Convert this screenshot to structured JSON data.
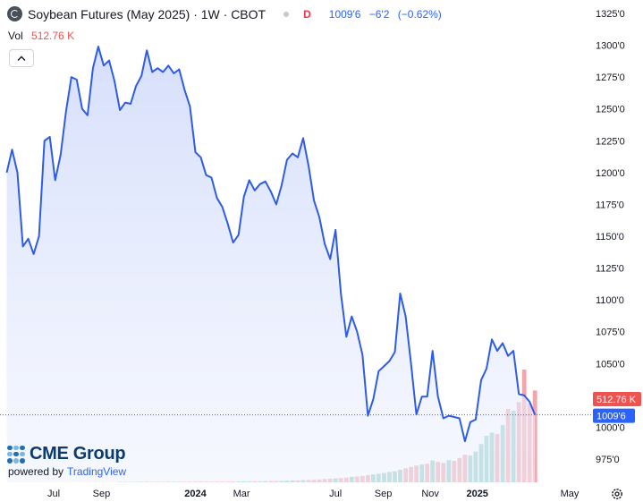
{
  "header": {
    "title": "Soybean Futures (May 2025) · 1W · CBOT",
    "market_status": "D",
    "last_price": "1009'6",
    "change": "−6'2",
    "change_pct": "(−0.62%)"
  },
  "volume_label": {
    "label": "Vol",
    "value": "512.76 K"
  },
  "branding": {
    "logo": "CME Group",
    "powered_by": "powered by",
    "provider": "TradingView"
  },
  "icons": {
    "collapse": "chevron-up-icon",
    "settings": "gear-icon",
    "cme": "cme-group-logo"
  },
  "colors": {
    "line": "#2f5ce6",
    "area_top": "#d4ddfb",
    "vol_up": "#8fcfc6",
    "vol_down": "#f2a5ab",
    "last_price": "#2962ff",
    "last_volume": "#ef5350"
  },
  "chart_data": {
    "type": "area",
    "y_unit": "cents per bushel (eighths notation)",
    "ylim": [
      950,
      1330
    ],
    "y_ticks": [
      "975'0",
      "1000'0",
      "1025'0",
      "1050'0",
      "1075'0",
      "1100'0",
      "1125'0",
      "1150'0",
      "1175'0",
      "1200'0",
      "1225'0",
      "1250'0",
      "1275'0",
      "1300'0",
      "1325'0"
    ],
    "y_tick_values": [
      975,
      1000,
      1025,
      1050,
      1075,
      1100,
      1125,
      1150,
      1175,
      1200,
      1225,
      1250,
      1275,
      1300,
      1325
    ],
    "x_ticks": [
      "Jul",
      "Sep",
      "2024",
      "Mar",
      "Jul",
      "Sep",
      "Nov",
      "2025",
      "May"
    ],
    "x_tick_dates": [
      "2023-07-01",
      "2023-09-01",
      "2024-01-01",
      "2024-03-01",
      "2024-07-01",
      "2024-09-01",
      "2024-11-01",
      "2025-01-01",
      "2025-05-01"
    ],
    "x_range": [
      "2023-05-01",
      "2025-06-15"
    ],
    "price_series": [
      {
        "date": "2023-05-01",
        "value": 1200
      },
      {
        "date": "2023-05-08",
        "value": 1218
      },
      {
        "date": "2023-05-15",
        "value": 1200
      },
      {
        "date": "2023-05-22",
        "value": 1142
      },
      {
        "date": "2023-05-29",
        "value": 1148
      },
      {
        "date": "2023-06-05",
        "value": 1136
      },
      {
        "date": "2023-06-12",
        "value": 1150
      },
      {
        "date": "2023-06-19",
        "value": 1225
      },
      {
        "date": "2023-06-26",
        "value": 1228
      },
      {
        "date": "2023-07-03",
        "value": 1194
      },
      {
        "date": "2023-07-10",
        "value": 1214
      },
      {
        "date": "2023-07-17",
        "value": 1248
      },
      {
        "date": "2023-07-24",
        "value": 1275
      },
      {
        "date": "2023-07-31",
        "value": 1273
      },
      {
        "date": "2023-08-07",
        "value": 1250
      },
      {
        "date": "2023-08-14",
        "value": 1245
      },
      {
        "date": "2023-08-21",
        "value": 1282
      },
      {
        "date": "2023-08-28",
        "value": 1299
      },
      {
        "date": "2023-09-04",
        "value": 1284
      },
      {
        "date": "2023-09-11",
        "value": 1288
      },
      {
        "date": "2023-09-18",
        "value": 1272
      },
      {
        "date": "2023-09-25",
        "value": 1249
      },
      {
        "date": "2023-10-02",
        "value": 1255
      },
      {
        "date": "2023-10-09",
        "value": 1254
      },
      {
        "date": "2023-10-16",
        "value": 1268
      },
      {
        "date": "2023-10-23",
        "value": 1276
      },
      {
        "date": "2023-10-30",
        "value": 1296
      },
      {
        "date": "2023-11-06",
        "value": 1279
      },
      {
        "date": "2023-11-13",
        "value": 1282
      },
      {
        "date": "2023-11-20",
        "value": 1279
      },
      {
        "date": "2023-11-27",
        "value": 1284
      },
      {
        "date": "2023-12-04",
        "value": 1278
      },
      {
        "date": "2023-12-11",
        "value": 1281
      },
      {
        "date": "2023-12-18",
        "value": 1265
      },
      {
        "date": "2023-12-25",
        "value": 1252
      },
      {
        "date": "2024-01-01",
        "value": 1216
      },
      {
        "date": "2024-01-08",
        "value": 1212
      },
      {
        "date": "2024-01-15",
        "value": 1198
      },
      {
        "date": "2024-01-22",
        "value": 1196
      },
      {
        "date": "2024-01-29",
        "value": 1180
      },
      {
        "date": "2024-02-05",
        "value": 1173
      },
      {
        "date": "2024-02-12",
        "value": 1160
      },
      {
        "date": "2024-02-19",
        "value": 1145
      },
      {
        "date": "2024-02-26",
        "value": 1151
      },
      {
        "date": "2024-03-04",
        "value": 1181
      },
      {
        "date": "2024-03-11",
        "value": 1194
      },
      {
        "date": "2024-03-18",
        "value": 1186
      },
      {
        "date": "2024-03-25",
        "value": 1191
      },
      {
        "date": "2024-04-01",
        "value": 1193
      },
      {
        "date": "2024-04-08",
        "value": 1185
      },
      {
        "date": "2024-04-15",
        "value": 1175
      },
      {
        "date": "2024-04-22",
        "value": 1190
      },
      {
        "date": "2024-04-29",
        "value": 1210
      },
      {
        "date": "2024-05-06",
        "value": 1215
      },
      {
        "date": "2024-05-13",
        "value": 1212
      },
      {
        "date": "2024-05-20",
        "value": 1227
      },
      {
        "date": "2024-05-27",
        "value": 1205
      },
      {
        "date": "2024-06-03",
        "value": 1178
      },
      {
        "date": "2024-06-10",
        "value": 1165
      },
      {
        "date": "2024-06-17",
        "value": 1144
      },
      {
        "date": "2024-06-24",
        "value": 1132
      },
      {
        "date": "2024-07-01",
        "value": 1155
      },
      {
        "date": "2024-07-08",
        "value": 1105
      },
      {
        "date": "2024-07-15",
        "value": 1071
      },
      {
        "date": "2024-07-22",
        "value": 1087
      },
      {
        "date": "2024-07-29",
        "value": 1075
      },
      {
        "date": "2024-08-05",
        "value": 1057
      },
      {
        "date": "2024-08-12",
        "value": 1009
      },
      {
        "date": "2024-08-19",
        "value": 1022
      },
      {
        "date": "2024-08-26",
        "value": 1044
      },
      {
        "date": "2024-09-02",
        "value": 1048
      },
      {
        "date": "2024-09-09",
        "value": 1052
      },
      {
        "date": "2024-09-16",
        "value": 1059
      },
      {
        "date": "2024-09-23",
        "value": 1105
      },
      {
        "date": "2024-09-30",
        "value": 1087
      },
      {
        "date": "2024-10-07",
        "value": 1050
      },
      {
        "date": "2024-10-14",
        "value": 1010
      },
      {
        "date": "2024-10-21",
        "value": 1024
      },
      {
        "date": "2024-10-28",
        "value": 1024
      },
      {
        "date": "2024-11-04",
        "value": 1060
      },
      {
        "date": "2024-11-11",
        "value": 1024
      },
      {
        "date": "2024-11-18",
        "value": 1007
      },
      {
        "date": "2024-11-25",
        "value": 1009
      },
      {
        "date": "2024-12-02",
        "value": 1008
      },
      {
        "date": "2024-12-09",
        "value": 1007
      },
      {
        "date": "2024-12-16",
        "value": 989
      },
      {
        "date": "2024-12-23",
        "value": 1004
      },
      {
        "date": "2024-12-30",
        "value": 1006
      },
      {
        "date": "2025-01-06",
        "value": 1037
      },
      {
        "date": "2025-01-13",
        "value": 1046
      },
      {
        "date": "2025-01-20",
        "value": 1069
      },
      {
        "date": "2025-01-27",
        "value": 1060
      },
      {
        "date": "2025-02-03",
        "value": 1066
      },
      {
        "date": "2025-02-10",
        "value": 1056
      },
      {
        "date": "2025-02-17",
        "value": 1060
      },
      {
        "date": "2025-02-24",
        "value": 1026
      },
      {
        "date": "2025-03-03",
        "value": 1025
      },
      {
        "date": "2025-03-10",
        "value": 1020
      },
      {
        "date": "2025-03-17",
        "value": 1009.75
      }
    ],
    "volume_series": [
      {
        "date": "2023-09-25",
        "value": 2,
        "dir": "up"
      },
      {
        "date": "2023-10-02",
        "value": 2,
        "dir": "down"
      },
      {
        "date": "2023-10-09",
        "value": 2,
        "dir": "up"
      },
      {
        "date": "2023-10-16",
        "value": 2,
        "dir": "up"
      },
      {
        "date": "2023-10-23",
        "value": 3,
        "dir": "up"
      },
      {
        "date": "2023-10-30",
        "value": 3,
        "dir": "down"
      },
      {
        "date": "2023-11-06",
        "value": 2,
        "dir": "up"
      },
      {
        "date": "2023-11-13",
        "value": 3,
        "dir": "down"
      },
      {
        "date": "2023-11-20",
        "value": 2,
        "dir": "up"
      },
      {
        "date": "2023-11-27",
        "value": 3,
        "dir": "down"
      },
      {
        "date": "2023-12-04",
        "value": 3,
        "dir": "up"
      },
      {
        "date": "2023-12-11",
        "value": 3,
        "dir": "down"
      },
      {
        "date": "2023-12-18",
        "value": 3,
        "dir": "down"
      },
      {
        "date": "2023-12-25",
        "value": 3,
        "dir": "down"
      },
      {
        "date": "2024-01-01",
        "value": 4,
        "dir": "down"
      },
      {
        "date": "2024-01-08",
        "value": 4,
        "dir": "down"
      },
      {
        "date": "2024-01-15",
        "value": 4,
        "dir": "down"
      },
      {
        "date": "2024-01-22",
        "value": 3,
        "dir": "down"
      },
      {
        "date": "2024-01-29",
        "value": 4,
        "dir": "down"
      },
      {
        "date": "2024-02-05",
        "value": 4,
        "dir": "down"
      },
      {
        "date": "2024-02-12",
        "value": 4,
        "dir": "down"
      },
      {
        "date": "2024-02-19",
        "value": 5,
        "dir": "down"
      },
      {
        "date": "2024-02-26",
        "value": 5,
        "dir": "up"
      },
      {
        "date": "2024-03-04",
        "value": 6,
        "dir": "up"
      },
      {
        "date": "2024-03-11",
        "value": 6,
        "dir": "up"
      },
      {
        "date": "2024-03-18",
        "value": 6,
        "dir": "down"
      },
      {
        "date": "2024-03-25",
        "value": 6,
        "dir": "up"
      },
      {
        "date": "2024-04-01",
        "value": 7,
        "dir": "up"
      },
      {
        "date": "2024-04-08",
        "value": 7,
        "dir": "down"
      },
      {
        "date": "2024-04-15",
        "value": 8,
        "dir": "down"
      },
      {
        "date": "2024-04-22",
        "value": 8,
        "dir": "up"
      },
      {
        "date": "2024-04-29",
        "value": 9,
        "dir": "up"
      },
      {
        "date": "2024-05-06",
        "value": 10,
        "dir": "up"
      },
      {
        "date": "2024-05-13",
        "value": 10,
        "dir": "down"
      },
      {
        "date": "2024-05-20",
        "value": 12,
        "dir": "up"
      },
      {
        "date": "2024-05-27",
        "value": 13,
        "dir": "down"
      },
      {
        "date": "2024-06-03",
        "value": 14,
        "dir": "down"
      },
      {
        "date": "2024-06-10",
        "value": 16,
        "dir": "down"
      },
      {
        "date": "2024-06-17",
        "value": 18,
        "dir": "down"
      },
      {
        "date": "2024-06-24",
        "value": 20,
        "dir": "down"
      },
      {
        "date": "2024-07-01",
        "value": 22,
        "dir": "up"
      },
      {
        "date": "2024-07-08",
        "value": 24,
        "dir": "down"
      },
      {
        "date": "2024-07-15",
        "value": 26,
        "dir": "down"
      },
      {
        "date": "2024-07-22",
        "value": 30,
        "dir": "up"
      },
      {
        "date": "2024-07-29",
        "value": 32,
        "dir": "down"
      },
      {
        "date": "2024-08-05",
        "value": 36,
        "dir": "down"
      },
      {
        "date": "2024-08-12",
        "value": 40,
        "dir": "down"
      },
      {
        "date": "2024-08-19",
        "value": 44,
        "dir": "up"
      },
      {
        "date": "2024-08-26",
        "value": 48,
        "dir": "up"
      },
      {
        "date": "2024-09-02",
        "value": 52,
        "dir": "up"
      },
      {
        "date": "2024-09-09",
        "value": 58,
        "dir": "up"
      },
      {
        "date": "2024-09-16",
        "value": 62,
        "dir": "up"
      },
      {
        "date": "2024-09-23",
        "value": 70,
        "dir": "up"
      },
      {
        "date": "2024-09-30",
        "value": 78,
        "dir": "down"
      },
      {
        "date": "2024-10-07",
        "value": 86,
        "dir": "down"
      },
      {
        "date": "2024-10-14",
        "value": 94,
        "dir": "down"
      },
      {
        "date": "2024-10-21",
        "value": 100,
        "dir": "up"
      },
      {
        "date": "2024-10-28",
        "value": 104,
        "dir": "down"
      },
      {
        "date": "2024-11-04",
        "value": 122,
        "dir": "up"
      },
      {
        "date": "2024-11-11",
        "value": 114,
        "dir": "down"
      },
      {
        "date": "2024-11-18",
        "value": 108,
        "dir": "down"
      },
      {
        "date": "2024-11-25",
        "value": 124,
        "dir": "up"
      },
      {
        "date": "2024-12-02",
        "value": 120,
        "dir": "down"
      },
      {
        "date": "2024-12-09",
        "value": 136,
        "dir": "down"
      },
      {
        "date": "2024-12-16",
        "value": 154,
        "dir": "down"
      },
      {
        "date": "2024-12-23",
        "value": 150,
        "dir": "up"
      },
      {
        "date": "2024-12-30",
        "value": 172,
        "dir": "up"
      },
      {
        "date": "2025-01-06",
        "value": 214,
        "dir": "up"
      },
      {
        "date": "2025-01-13",
        "value": 260,
        "dir": "up"
      },
      {
        "date": "2025-01-20",
        "value": 278,
        "dir": "up"
      },
      {
        "date": "2025-01-27",
        "value": 270,
        "dir": "down"
      },
      {
        "date": "2025-02-03",
        "value": 320,
        "dir": "up"
      },
      {
        "date": "2025-02-10",
        "value": 410,
        "dir": "down"
      },
      {
        "date": "2025-02-17",
        "value": 400,
        "dir": "up"
      },
      {
        "date": "2025-02-24",
        "value": 448,
        "dir": "down"
      },
      {
        "date": "2025-03-03",
        "value": 630,
        "dir": "down"
      },
      {
        "date": "2025-03-10",
        "value": 440,
        "dir": "down"
      },
      {
        "date": "2025-03-17",
        "value": 512.76,
        "dir": "down"
      }
    ],
    "volume_max": 700,
    "last_price_value": 1009.75,
    "last_price_label": "1009'6",
    "last_volume_label": "512.76 K",
    "grid": false
  }
}
